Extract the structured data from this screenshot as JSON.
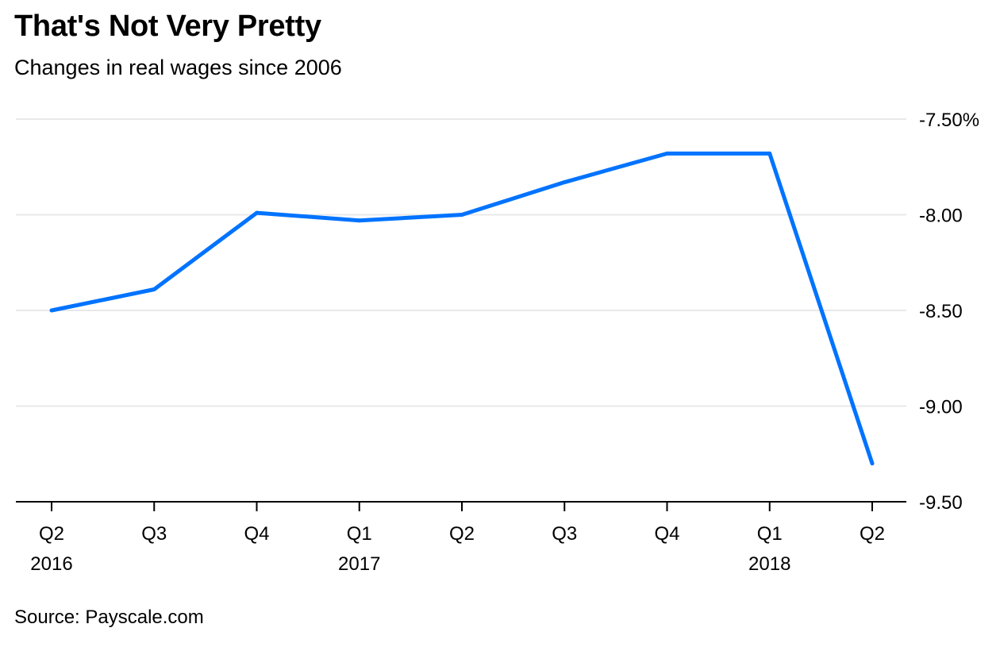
{
  "header": {
    "title": "That's Not Very Pretty",
    "subtitle": "Changes in real wages since 2006"
  },
  "footer": {
    "source": "Source: Payscale.com"
  },
  "colors": {
    "line": "#0073ff",
    "grid": "#e8e8e8",
    "axis": "#000000"
  },
  "chart_data": {
    "type": "line",
    "title": "That's Not Very Pretty",
    "subtitle": "Changes in real wages since 2006",
    "xlabel": "",
    "ylabel": "",
    "categories": [
      "Q2 2016",
      "Q3 2016",
      "Q4 2016",
      "Q1 2017",
      "Q2 2017",
      "Q3 2017",
      "Q4 2017",
      "Q1 2018",
      "Q2 2018"
    ],
    "x_tick_labels": [
      {
        "quarter": "Q2",
        "year": "2016"
      },
      {
        "quarter": "Q3",
        "year": ""
      },
      {
        "quarter": "Q4",
        "year": ""
      },
      {
        "quarter": "Q1",
        "year": "2017"
      },
      {
        "quarter": "Q2",
        "year": ""
      },
      {
        "quarter": "Q3",
        "year": ""
      },
      {
        "quarter": "Q4",
        "year": ""
      },
      {
        "quarter": "Q1",
        "year": "2018"
      },
      {
        "quarter": "Q2",
        "year": ""
      }
    ],
    "series": [
      {
        "values": [
          -8.5,
          -8.39,
          -7.99,
          -8.03,
          -8.0,
          -7.83,
          -7.68,
          -7.68,
          -9.3
        ]
      }
    ],
    "ylim": [
      -9.5,
      -7.5
    ],
    "y_ticks": [
      {
        "value": -7.5,
        "label": "-7.50%"
      },
      {
        "value": -8.0,
        "label": "-8.00"
      },
      {
        "value": -8.5,
        "label": "-8.50"
      },
      {
        "value": -9.0,
        "label": "-9.00"
      },
      {
        "value": -9.5,
        "label": "-9.50"
      }
    ],
    "y_axis_position": "right",
    "grid": true,
    "legend": "none"
  }
}
